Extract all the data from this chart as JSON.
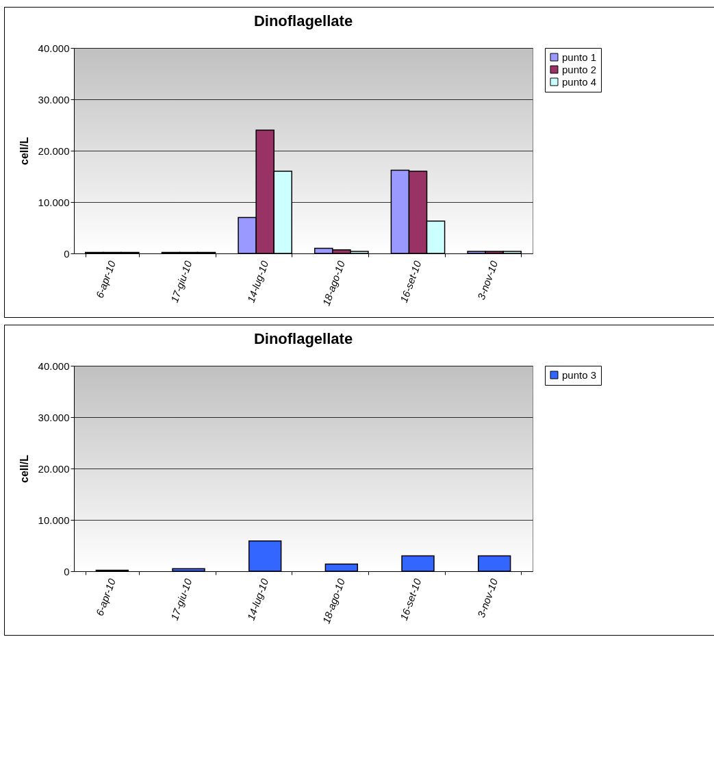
{
  "chart_data": [
    {
      "type": "bar",
      "title": "Dinoflagellate",
      "ylabel": "cell/L",
      "categories": [
        "6-apr-10",
        "17-giu-10",
        "14-lug-10",
        "18-ago-10",
        "16-set-10",
        "3-nov-10"
      ],
      "series": [
        {
          "name": "punto 1",
          "color": "#9999ff",
          "values": [
            200,
            200,
            7000,
            1000,
            16200,
            400
          ]
        },
        {
          "name": "punto 2",
          "color": "#993366",
          "values": [
            200,
            200,
            24000,
            700,
            16000,
            400
          ]
        },
        {
          "name": "punto 4",
          "color": "#ccffff",
          "values": [
            200,
            200,
            16000,
            400,
            6300,
            400
          ]
        }
      ],
      "ylim": [
        0,
        40000
      ],
      "yticks": [
        0,
        {
          "value": 10000,
          "label": "10.000"
        },
        {
          "value": 20000,
          "label": "20.000"
        },
        {
          "value": 30000,
          "label": "30.000"
        },
        {
          "value": 40000,
          "label": "40.000"
        }
      ],
      "grid": "y",
      "legend": "right"
    },
    {
      "type": "bar",
      "title": "Dinoflagellate",
      "ylabel": "cell/L",
      "categories": [
        "6-apr-10",
        "17-giu-10",
        "14-lug-10",
        "18-ago-10",
        "16-set-10",
        "3-nov-10"
      ],
      "series": [
        {
          "name": "punto 3",
          "color": "#3366ff",
          "values": [
            200,
            500,
            5900,
            1400,
            3000,
            3000
          ]
        }
      ],
      "ylim": [
        0,
        40000
      ],
      "yticks": [
        0,
        {
          "value": 10000,
          "label": "10.000"
        },
        {
          "value": 20000,
          "label": "20.000"
        },
        {
          "value": 30000,
          "label": "30.000"
        },
        {
          "value": 40000,
          "label": "40.000"
        }
      ],
      "grid": "y",
      "legend": "right"
    }
  ]
}
